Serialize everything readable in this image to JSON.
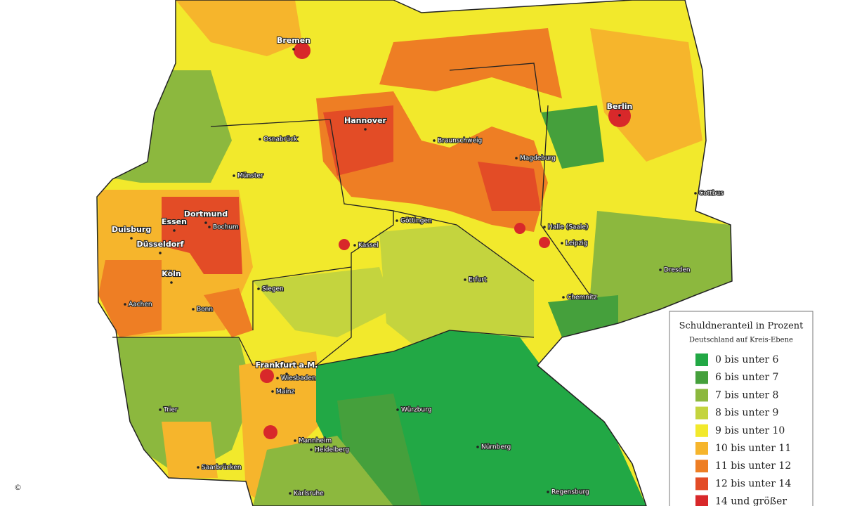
{
  "map": {
    "cities": [
      "Bremen",
      "Hannover",
      "Berlin",
      "Osnabrück",
      "Braunschweig",
      "Magdeburg",
      "Münster",
      "Cottbus",
      "Dortmund",
      "Essen",
      "Bochum",
      "Duisburg",
      "Göttingen",
      "Halle (Saale)",
      "Düsseldorf",
      "Kassel",
      "Leipzig",
      "Dresden",
      "Köln",
      "Erfurt",
      "Siegen",
      "Aachen",
      "Bonn",
      "Chemnitz",
      "Frankfurt a.M.",
      "Wiesbaden",
      "Mainz",
      "Würzburg",
      "Trier",
      "Nürnberg",
      "Mannheim",
      "Heidelberg",
      "Saarbrücken",
      "Regensburg",
      "Karlsruhe"
    ],
    "legend": {
      "title": "Schuldneranteil in Prozent",
      "subtitle": "Deutschland auf Kreis-Ebene",
      "items": [
        {
          "label": "0 bis unter 6",
          "color": "#22a845"
        },
        {
          "label": "6 bis unter 7",
          "color": "#45a03c"
        },
        {
          "label": "7 bis unter 8",
          "color": "#8cb83e"
        },
        {
          "label": "8 bis unter 9",
          "color": "#c4d43e"
        },
        {
          "label": "9 bis unter 10",
          "color": "#f2e92c"
        },
        {
          "label": "10 bis unter 11",
          "color": "#f6b52c"
        },
        {
          "label": "11 bis unter 12",
          "color": "#ee7e24"
        },
        {
          "label": "12 bis unter 14",
          "color": "#e34c26"
        },
        {
          "label": "14 und größer",
          "color": "#d8282a"
        }
      ]
    },
    "copyright": "©"
  }
}
